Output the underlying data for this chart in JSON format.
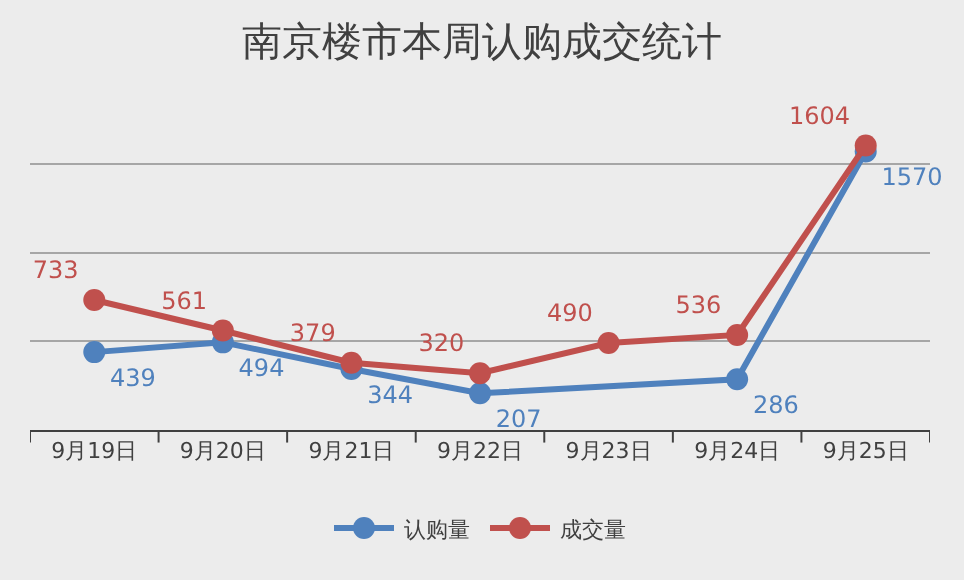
{
  "chart_data": {
    "type": "line",
    "title": "南京楼市本周认购成交统计",
    "categories": [
      "9月19日",
      "9月20日",
      "9月21日",
      "9月22日",
      "9月23日",
      "9月24日",
      "9月25日"
    ],
    "series": [
      {
        "name": "认购量",
        "color": "#4f81bd",
        "values": [
          439,
          494,
          344,
          207,
          null,
          286,
          1570
        ],
        "value_labels": [
          "439",
          "494",
          "344",
          "207",
          null,
          "286",
          "1570"
        ]
      },
      {
        "name": "成交量",
        "color": "#c0504d",
        "values": [
          733,
          561,
          379,
          320,
          490,
          536,
          1604
        ],
        "value_labels": [
          "733",
          "561",
          "379",
          "320",
          "490",
          "536",
          "1604"
        ]
      }
    ],
    "tick_labels": "x",
    "grid": "y",
    "legend": "bottom",
    "marker": "circle",
    "line_style": "solid"
  }
}
